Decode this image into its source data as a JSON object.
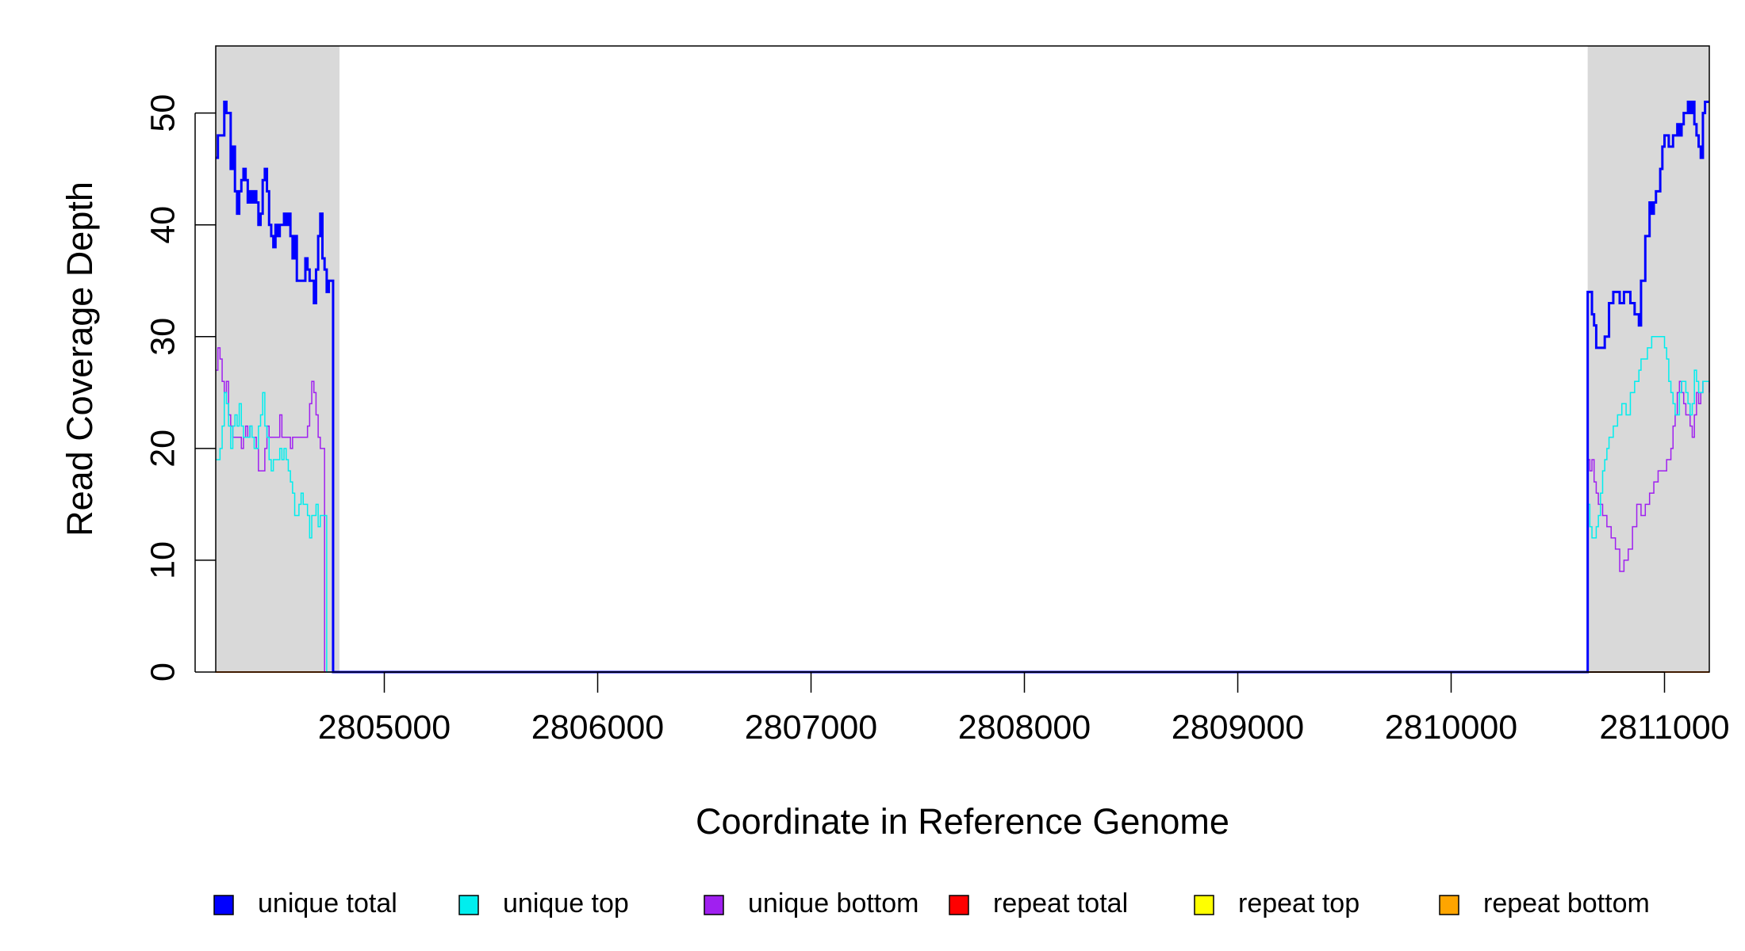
{
  "chart_data": {
    "type": "line",
    "title": "",
    "xlabel": "Coordinate in Reference Genome",
    "ylabel": "Read Coverage Depth",
    "xlim": [
      2804210,
      2811210
    ],
    "ylim": [
      0,
      56
    ],
    "x_ticks": [
      2805000,
      2806000,
      2807000,
      2808000,
      2809000,
      2810000,
      2811000
    ],
    "x_tick_labels": [
      "2805000",
      "2806000",
      "2807000",
      "2808000",
      "2809000",
      "2810000",
      "2811000"
    ],
    "y_ticks": [
      0,
      10,
      20,
      30,
      40,
      50
    ],
    "y_tick_labels": [
      "0",
      "10",
      "20",
      "30",
      "40",
      "50"
    ],
    "grid": false,
    "legend_position": "bottom",
    "shaded_regions": [
      {
        "x0": 2804210,
        "x1": 2804790,
        "color": "#d9d9d9"
      },
      {
        "x0": 2810640,
        "x1": 2811210,
        "color": "#d9d9d9"
      }
    ],
    "series": [
      {
        "name": "unique total",
        "color": "#0000ff",
        "step": true,
        "width": 3,
        "x": [
          2804210,
          2804220,
          2804240,
          2804250,
          2804260,
          2804270,
          2804280,
          2804290,
          2804300,
          2804310,
          2804320,
          2804330,
          2804340,
          2804350,
          2804360,
          2804370,
          2804380,
          2804390,
          2804400,
          2804410,
          2804420,
          2804430,
          2804440,
          2804450,
          2804460,
          2804470,
          2804480,
          2804490,
          2804500,
          2804510,
          2804520,
          2804530,
          2804540,
          2804550,
          2804560,
          2804570,
          2804580,
          2804590,
          2804600,
          2804610,
          2804620,
          2804630,
          2804640,
          2804650,
          2804660,
          2804670,
          2804680,
          2804690,
          2804700,
          2804710,
          2804720,
          2804730,
          2804740,
          2804750,
          2804760,
          2804770,
          2804780,
          2804790,
          2810640,
          2810660,
          2810670,
          2810680,
          2810690,
          2810720,
          2810740,
          2810760,
          2810790,
          2810810,
          2810830,
          2810840,
          2810860,
          2810880,
          2810890,
          2810910,
          2810930,
          2810940,
          2810950,
          2810960,
          2810980,
          2810990,
          2811000,
          2811020,
          2811040,
          2811060,
          2811070,
          2811080,
          2811090,
          2811110,
          2811120,
          2811130,
          2811140,
          2811150,
          2811160,
          2811170,
          2811180,
          2811190,
          2811210
        ],
        "y": [
          46,
          48,
          48,
          51,
          50,
          50,
          45,
          47,
          43,
          41,
          43,
          44,
          45,
          44,
          42,
          43,
          42,
          43,
          42,
          40,
          41,
          44,
          45,
          43,
          40,
          39,
          38,
          40,
          39,
          40,
          40,
          41,
          40,
          41,
          39,
          37,
          39,
          35,
          35,
          35,
          35,
          37,
          36,
          35,
          35,
          33,
          36,
          39,
          41,
          37,
          36,
          34,
          35,
          35,
          0,
          0,
          0,
          0,
          34,
          32,
          31,
          29,
          29,
          30,
          33,
          34,
          33,
          34,
          34,
          33,
          32,
          31,
          35,
          39,
          42,
          41,
          42,
          43,
          45,
          47,
          48,
          47,
          48,
          49,
          48,
          49,
          50,
          51,
          50,
          51,
          49,
          48,
          47,
          46,
          50,
          51,
          51
        ]
      },
      {
        "name": "unique top",
        "color": "#00eeee",
        "step": true,
        "width": 1.5,
        "x": [
          2804210,
          2804230,
          2804240,
          2804250,
          2804260,
          2804270,
          2804280,
          2804290,
          2804300,
          2804310,
          2804320,
          2804330,
          2804340,
          2804350,
          2804360,
          2804370,
          2804380,
          2804390,
          2804400,
          2804410,
          2804420,
          2804430,
          2804440,
          2804450,
          2804460,
          2804470,
          2804480,
          2804490,
          2804500,
          2804510,
          2804520,
          2804530,
          2804540,
          2804550,
          2804560,
          2804570,
          2804580,
          2804590,
          2804600,
          2804610,
          2804620,
          2804630,
          2804640,
          2804650,
          2804660,
          2804670,
          2804680,
          2804690,
          2804700,
          2804710,
          2804720,
          2804730,
          2804740,
          2804750,
          2804760,
          2804770,
          2804780,
          2804790,
          2810640,
          2810650,
          2810660,
          2810670,
          2810680,
          2810690,
          2810700,
          2810710,
          2810720,
          2810730,
          2810740,
          2810760,
          2810780,
          2810800,
          2810820,
          2810840,
          2810860,
          2810880,
          2810890,
          2810900,
          2810920,
          2810930,
          2810940,
          2810960,
          2810980,
          2811000,
          2811010,
          2811020,
          2811030,
          2811040,
          2811050,
          2811060,
          2811070,
          2811080,
          2811090,
          2811100,
          2811110,
          2811120,
          2811130,
          2811140,
          2811150,
          2811160,
          2811170,
          2811180,
          2811190,
          2811200,
          2811210
        ],
        "y": [
          19,
          20,
          22,
          25,
          24,
          22,
          20,
          22,
          23,
          22,
          24,
          22,
          21,
          21,
          21,
          22,
          21,
          20,
          20,
          22,
          23,
          25,
          22,
          21,
          19,
          18,
          19,
          19,
          19,
          20,
          19,
          20,
          19,
          18,
          17,
          16,
          14,
          14,
          15,
          16,
          15,
          15,
          14,
          12,
          14,
          14,
          15,
          13,
          14,
          14,
          14,
          0,
          0,
          0,
          0,
          0,
          0,
          0,
          15,
          13,
          12,
          12,
          13,
          14,
          16,
          18,
          19,
          20,
          21,
          22,
          23,
          24,
          23,
          25,
          26,
          27,
          28,
          28,
          29,
          29,
          30,
          30,
          30,
          29,
          28,
          26,
          25,
          24,
          23,
          23,
          25,
          26,
          26,
          25,
          24,
          23,
          24,
          27,
          26,
          25,
          25,
          26,
          26,
          26,
          26
        ]
      },
      {
        "name": "unique bottom",
        "color": "#a020f0",
        "step": true,
        "width": 1.5,
        "x": [
          2804210,
          2804220,
          2804230,
          2804240,
          2804250,
          2804260,
          2804270,
          2804280,
          2804290,
          2804300,
          2804310,
          2804320,
          2804330,
          2804340,
          2804350,
          2804360,
          2804370,
          2804380,
          2804390,
          2804400,
          2804410,
          2804420,
          2804430,
          2804440,
          2804450,
          2804460,
          2804470,
          2804480,
          2804490,
          2804500,
          2804510,
          2804520,
          2804530,
          2804540,
          2804550,
          2804560,
          2804570,
          2804580,
          2804590,
          2804600,
          2804610,
          2804620,
          2804630,
          2804640,
          2804650,
          2804660,
          2804670,
          2804680,
          2804690,
          2804700,
          2804710,
          2804720,
          2804730,
          2804740,
          2804750,
          2804760,
          2804770,
          2804780,
          2804790,
          2810640,
          2810650,
          2810660,
          2810670,
          2810680,
          2810690,
          2810710,
          2810730,
          2810750,
          2810770,
          2810790,
          2810810,
          2810830,
          2810850,
          2810870,
          2810890,
          2810910,
          2810930,
          2810950,
          2810970,
          2810990,
          2811010,
          2811030,
          2811040,
          2811050,
          2811060,
          2811070,
          2811080,
          2811090,
          2811100,
          2811110,
          2811120,
          2811130,
          2811140,
          2811150,
          2811160,
          2811170,
          2811180,
          2811190,
          2811200,
          2811210
        ],
        "y": [
          27,
          29,
          28,
          26,
          25,
          26,
          23,
          22,
          21,
          21,
          21,
          21,
          20,
          21,
          22,
          21,
          22,
          21,
          21,
          20,
          18,
          18,
          18,
          20,
          22,
          21,
          21,
          21,
          21,
          21,
          23,
          21,
          21,
          21,
          21,
          20,
          21,
          21,
          21,
          21,
          21,
          21,
          21,
          22,
          24,
          26,
          25,
          23,
          21,
          20,
          20,
          0,
          0,
          0,
          0,
          0,
          0,
          0,
          0,
          19,
          18,
          19,
          17,
          16,
          15,
          14,
          13,
          12,
          11,
          9,
          10,
          11,
          13,
          15,
          14,
          15,
          16,
          17,
          18,
          18,
          19,
          20,
          22,
          23,
          25,
          26,
          25,
          24,
          23,
          23,
          22,
          21,
          23,
          25,
          24,
          25,
          26,
          26,
          26,
          25
        ]
      },
      {
        "name": "repeat total",
        "color": "#ff0000",
        "step": true,
        "width": 1.5,
        "x": [
          2804210,
          2811210
        ],
        "y": [
          0,
          0
        ]
      },
      {
        "name": "repeat top",
        "color": "#ffff00",
        "step": true,
        "width": 1.5,
        "x": [
          2804210,
          2811210
        ],
        "y": [
          0,
          0
        ]
      },
      {
        "name": "repeat bottom",
        "color": "#ffa500",
        "step": true,
        "width": 2,
        "x": [
          2804210,
          2811210
        ],
        "y": [
          0,
          0
        ]
      }
    ]
  }
}
